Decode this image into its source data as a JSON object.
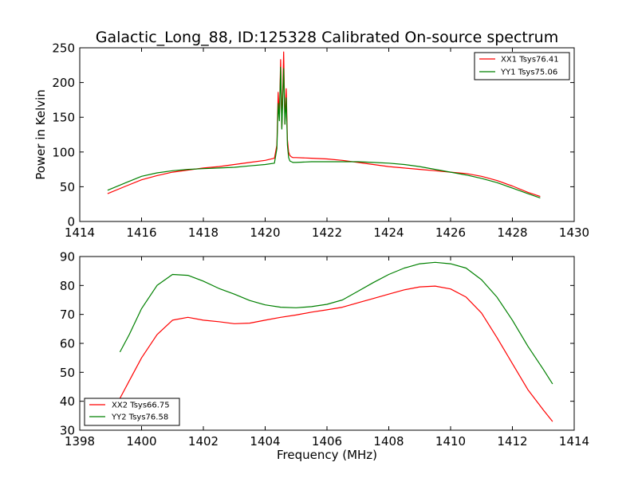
{
  "figure": {
    "title": "Galactic_Long_88, ID:125328 Calibrated On-source spectrum"
  },
  "chart_data": [
    {
      "type": "line",
      "title": "Galactic_Long_88, ID:125328 Calibrated On-source spectrum",
      "xlabel": "",
      "ylabel": "Power in Kelvin",
      "xlim": [
        1414,
        1430
      ],
      "ylim": [
        0,
        250
      ],
      "xticks": [
        1414,
        1416,
        1418,
        1420,
        1422,
        1424,
        1426,
        1428,
        1430
      ],
      "yticks": [
        0,
        50,
        100,
        150,
        200,
        250
      ],
      "grid": false,
      "legend_position": "top-right",
      "series": [
        {
          "name": "XX1 Tsys76.41",
          "color": "#ff0000",
          "x": [
            1414.9,
            1415.5,
            1416.0,
            1416.5,
            1417.0,
            1417.5,
            1418.0,
            1418.5,
            1419.0,
            1419.5,
            1420.0,
            1420.3,
            1420.38,
            1420.42,
            1420.46,
            1420.5,
            1420.54,
            1420.6,
            1420.64,
            1420.68,
            1420.72,
            1420.76,
            1420.8,
            1420.85,
            1420.9,
            1421.0,
            1421.5,
            1422.0,
            1422.5,
            1423.0,
            1423.5,
            1424.0,
            1424.5,
            1425.0,
            1425.5,
            1426.0,
            1426.5,
            1427.0,
            1427.5,
            1428.0,
            1428.5,
            1428.9
          ],
          "y": [
            40,
            51,
            60,
            66,
            71,
            74,
            77,
            79,
            82,
            85,
            88,
            91,
            110,
            186,
            150,
            233,
            135,
            244,
            140,
            191,
            118,
            100,
            95,
            93,
            92,
            92,
            91,
            90,
            88,
            85,
            82,
            79,
            77,
            75,
            73,
            71,
            69,
            65,
            59,
            51,
            42,
            36
          ]
        },
        {
          "name": "YY1 Tsys75.06",
          "color": "#008000",
          "x": [
            1414.9,
            1415.5,
            1416.0,
            1416.5,
            1417.0,
            1417.5,
            1418.0,
            1418.5,
            1419.0,
            1419.5,
            1420.0,
            1420.3,
            1420.38,
            1420.42,
            1420.46,
            1420.5,
            1420.54,
            1420.6,
            1420.64,
            1420.68,
            1420.72,
            1420.76,
            1420.8,
            1420.85,
            1420.9,
            1421.0,
            1421.5,
            1422.0,
            1422.5,
            1423.0,
            1423.5,
            1424.0,
            1424.5,
            1425.0,
            1425.5,
            1426.0,
            1426.5,
            1427.0,
            1427.5,
            1428.0,
            1428.5,
            1428.9
          ],
          "y": [
            45,
            56,
            65,
            70,
            73,
            75,
            76,
            77,
            78,
            80,
            82,
            84,
            105,
            170,
            145,
            222,
            133,
            220,
            140,
            178,
            110,
            92,
            87,
            86,
            85,
            85,
            86,
            86,
            86,
            86,
            85,
            84,
            82,
            79,
            75,
            71,
            67,
            62,
            56,
            48,
            40,
            34
          ]
        }
      ]
    },
    {
      "type": "line",
      "title": "",
      "xlabel": "Frequency (MHz)",
      "ylabel": "",
      "xlim": [
        1398,
        1414
      ],
      "ylim": [
        30,
        90
      ],
      "xticks": [
        1398,
        1400,
        1402,
        1404,
        1406,
        1408,
        1410,
        1412,
        1414
      ],
      "yticks": [
        30,
        40,
        50,
        60,
        70,
        80,
        90
      ],
      "grid": false,
      "legend_position": "bottom-left",
      "series": [
        {
          "name": "XX2 Tsys66.75",
          "color": "#ff0000",
          "x": [
            1399.3,
            1399.6,
            1400.0,
            1400.5,
            1401.0,
            1401.5,
            1402.0,
            1402.5,
            1403.0,
            1403.5,
            1404.0,
            1404.5,
            1405.0,
            1405.5,
            1406.0,
            1406.5,
            1407.0,
            1407.5,
            1408.0,
            1408.5,
            1409.0,
            1409.5,
            1410.0,
            1410.5,
            1411.0,
            1411.5,
            1412.0,
            1412.5,
            1413.0,
            1413.3
          ],
          "y": [
            41,
            47,
            55,
            63,
            68,
            69,
            68,
            67.5,
            66.8,
            67,
            68,
            69,
            69.8,
            70.8,
            71.6,
            72.5,
            74,
            75.5,
            77,
            78.5,
            79.5,
            79.8,
            78.8,
            76,
            70.5,
            62,
            53,
            44,
            37,
            33
          ]
        },
        {
          "name": "YY2 Tsys76.58",
          "color": "#008000",
          "x": [
            1399.3,
            1399.6,
            1400.0,
            1400.5,
            1401.0,
            1401.5,
            1402.0,
            1402.5,
            1403.0,
            1403.5,
            1404.0,
            1404.5,
            1405.0,
            1405.5,
            1406.0,
            1406.5,
            1407.0,
            1407.5,
            1408.0,
            1408.5,
            1409.0,
            1409.5,
            1410.0,
            1410.5,
            1411.0,
            1411.5,
            1412.0,
            1412.5,
            1413.0,
            1413.3
          ],
          "y": [
            57,
            63,
            72,
            80,
            83.8,
            83.5,
            81.5,
            79,
            77,
            74.8,
            73.3,
            72.5,
            72.3,
            72.7,
            73.5,
            75,
            78,
            81,
            83.8,
            86,
            87.5,
            88,
            87.5,
            86,
            82,
            76,
            68,
            59,
            51,
            46
          ]
        }
      ]
    }
  ]
}
